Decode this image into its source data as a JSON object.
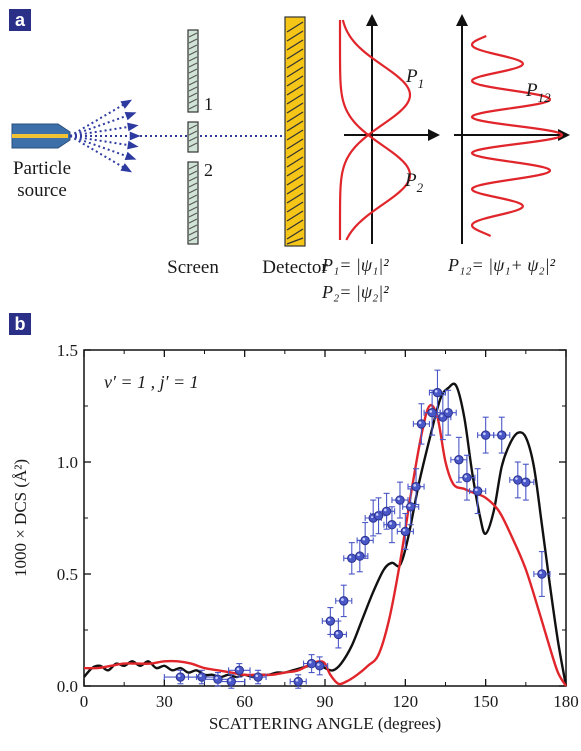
{
  "panel_a": {
    "badge": "a",
    "source_label_1": "Particle",
    "source_label_2": "source",
    "slit_1": "1",
    "slit_2": "2",
    "screen_label": "Screen",
    "detector_label": "Detector",
    "p1_label": "P",
    "p1_sub": "1",
    "p2_label": "P",
    "p2_sub": "2",
    "p12_label": "P",
    "p12_sub": "12",
    "eq_p1": "P₁= |ψ₁|²",
    "eq_p2": "P₂= |ψ₂|²",
    "eq_p12": "P₁₂= |ψ₁+ ψ₂|²",
    "colors": {
      "badge": "#2a2f88",
      "source_body": "#3d6fa8",
      "source_core": "#f2c230",
      "rays": "#2d3aa0",
      "screen_fill": "#cfe3d6",
      "detector_fill": "#f5c518",
      "curve": "#e0252b"
    }
  },
  "panel_b": {
    "badge": "b",
    "chart_data": {
      "type": "line",
      "annotation": "v′ = 1 ,  j′ = 1",
      "xlabel": "SCATTERING ANGLE (degrees)",
      "ylabel": "1000 × DCS (Å²)",
      "xlim": [
        0,
        180
      ],
      "ylim": [
        0,
        1.5
      ],
      "xticks": [
        0,
        30,
        60,
        90,
        120,
        150,
        180
      ],
      "yticks": [
        "0.0",
        "0.5",
        "1.0",
        "1.5"
      ],
      "grid": false,
      "series": [
        {
          "color": "#111111",
          "kind": "line",
          "points": [
            [
              0,
              0.04
            ],
            [
              3,
              0.08
            ],
            [
              6,
              0.09
            ],
            [
              9,
              0.07
            ],
            [
              12,
              0.1
            ],
            [
              15,
              0.09
            ],
            [
              18,
              0.11
            ],
            [
              21,
              0.09
            ],
            [
              24,
              0.11
            ],
            [
              27,
              0.08
            ],
            [
              30,
              0.09
            ],
            [
              33,
              0.07
            ],
            [
              36,
              0.08
            ],
            [
              39,
              0.06
            ],
            [
              42,
              0.07
            ],
            [
              45,
              0.05
            ],
            [
              48,
              0.05
            ],
            [
              51,
              0.04
            ],
            [
              54,
              0.05
            ],
            [
              57,
              0.04
            ],
            [
              60,
              0.05
            ],
            [
              63,
              0.04
            ],
            [
              66,
              0.05
            ],
            [
              69,
              0.05
            ],
            [
              72,
              0.06
            ],
            [
              75,
              0.06
            ],
            [
              78,
              0.07
            ],
            [
              81,
              0.08
            ],
            [
              84,
              0.09
            ],
            [
              87,
              0.1
            ],
            [
              90,
              0.08
            ],
            [
              93,
              0.07
            ],
            [
              96,
              0.1
            ],
            [
              100,
              0.18
            ],
            [
              104,
              0.3
            ],
            [
              108,
              0.42
            ],
            [
              112,
              0.52
            ],
            [
              115,
              0.55
            ],
            [
              118,
              0.54
            ],
            [
              121,
              0.66
            ],
            [
              125,
              0.9
            ],
            [
              129,
              1.1
            ],
            [
              133,
              1.28
            ],
            [
              136,
              1.33
            ],
            [
              139,
              1.34
            ],
            [
              142,
              1.2
            ],
            [
              145,
              0.95
            ],
            [
              148,
              0.75
            ],
            [
              150,
              0.68
            ],
            [
              153,
              0.78
            ],
            [
              156,
              0.98
            ],
            [
              159,
              1.08
            ],
            [
              162,
              1.13
            ],
            [
              165,
              1.11
            ],
            [
              168,
              0.98
            ],
            [
              171,
              0.72
            ],
            [
              174,
              0.45
            ],
            [
              177,
              0.2
            ],
            [
              180,
              0.0
            ]
          ]
        },
        {
          "color": "#e0252b",
          "kind": "line",
          "points": [
            [
              0,
              0.08
            ],
            [
              5,
              0.08
            ],
            [
              10,
              0.09
            ],
            [
              15,
              0.1
            ],
            [
              20,
              0.1
            ],
            [
              25,
              0.1
            ],
            [
              30,
              0.11
            ],
            [
              35,
              0.11
            ],
            [
              40,
              0.1
            ],
            [
              45,
              0.08
            ],
            [
              50,
              0.07
            ],
            [
              55,
              0.06
            ],
            [
              60,
              0.05
            ],
            [
              65,
              0.05
            ],
            [
              70,
              0.05
            ],
            [
              75,
              0.06
            ],
            [
              80,
              0.07
            ],
            [
              85,
              0.1
            ],
            [
              88,
              0.11
            ],
            [
              90,
              0.1
            ],
            [
              92,
              0.05
            ],
            [
              95,
              0.01
            ],
            [
              98,
              0.02
            ],
            [
              102,
              0.05
            ],
            [
              106,
              0.09
            ],
            [
              110,
              0.14
            ],
            [
              114,
              0.3
            ],
            [
              118,
              0.55
            ],
            [
              122,
              0.85
            ],
            [
              126,
              1.12
            ],
            [
              129,
              1.25
            ],
            [
              132,
              1.2
            ],
            [
              135,
              1.0
            ],
            [
              138,
              0.9
            ],
            [
              142,
              0.88
            ],
            [
              146,
              0.86
            ],
            [
              150,
              0.84
            ],
            [
              155,
              0.78
            ],
            [
              160,
              0.66
            ],
            [
              165,
              0.52
            ],
            [
              170,
              0.33
            ],
            [
              174,
              0.17
            ],
            [
              177,
              0.06
            ],
            [
              180,
              0.0
            ]
          ]
        },
        {
          "color": "#4a57c7",
          "kind": "points",
          "points": [
            [
              36,
              0.04
            ],
            [
              44,
              0.04
            ],
            [
              50,
              0.03
            ],
            [
              55,
              0.02
            ],
            [
              58,
              0.07
            ],
            [
              65,
              0.04
            ],
            [
              80,
              0.02
            ],
            [
              85,
              0.1
            ],
            [
              88,
              0.09
            ],
            [
              92,
              0.29
            ],
            [
              95,
              0.23
            ],
            [
              97,
              0.38
            ],
            [
              100,
              0.57
            ],
            [
              103,
              0.58
            ],
            [
              105,
              0.65
            ],
            [
              108,
              0.75
            ],
            [
              110,
              0.76
            ],
            [
              113,
              0.78
            ],
            [
              115,
              0.72
            ],
            [
              118,
              0.83
            ],
            [
              120,
              0.69
            ],
            [
              122,
              0.8
            ],
            [
              124,
              0.89
            ],
            [
              126,
              1.17
            ],
            [
              130,
              1.22
            ],
            [
              132,
              1.31
            ],
            [
              134,
              1.2
            ],
            [
              136,
              1.22
            ],
            [
              140,
              1.01
            ],
            [
              143,
              0.93
            ],
            [
              147,
              0.87
            ],
            [
              150,
              1.12
            ],
            [
              156,
              1.12
            ],
            [
              162,
              0.92
            ],
            [
              165,
              0.91
            ],
            [
              171,
              0.5
            ]
          ],
          "xerr": [
            6,
            5,
            5,
            5,
            4,
            3,
            3,
            3,
            3,
            3,
            3,
            3,
            3,
            3,
            3,
            3,
            3,
            3,
            3,
            3,
            3,
            3,
            3,
            3,
            3,
            3,
            3,
            3,
            3,
            3,
            3,
            3,
            3,
            3,
            3,
            3
          ],
          "yerr": [
            0.03,
            0.03,
            0.03,
            0.03,
            0.03,
            0.03,
            0.03,
            0.04,
            0.04,
            0.06,
            0.06,
            0.07,
            0.07,
            0.07,
            0.08,
            0.08,
            0.08,
            0.08,
            0.08,
            0.08,
            0.08,
            0.08,
            0.08,
            0.09,
            0.1,
            0.1,
            0.1,
            0.1,
            0.1,
            0.1,
            0.1,
            0.08,
            0.08,
            0.08,
            0.08,
            0.1
          ]
        }
      ]
    }
  }
}
